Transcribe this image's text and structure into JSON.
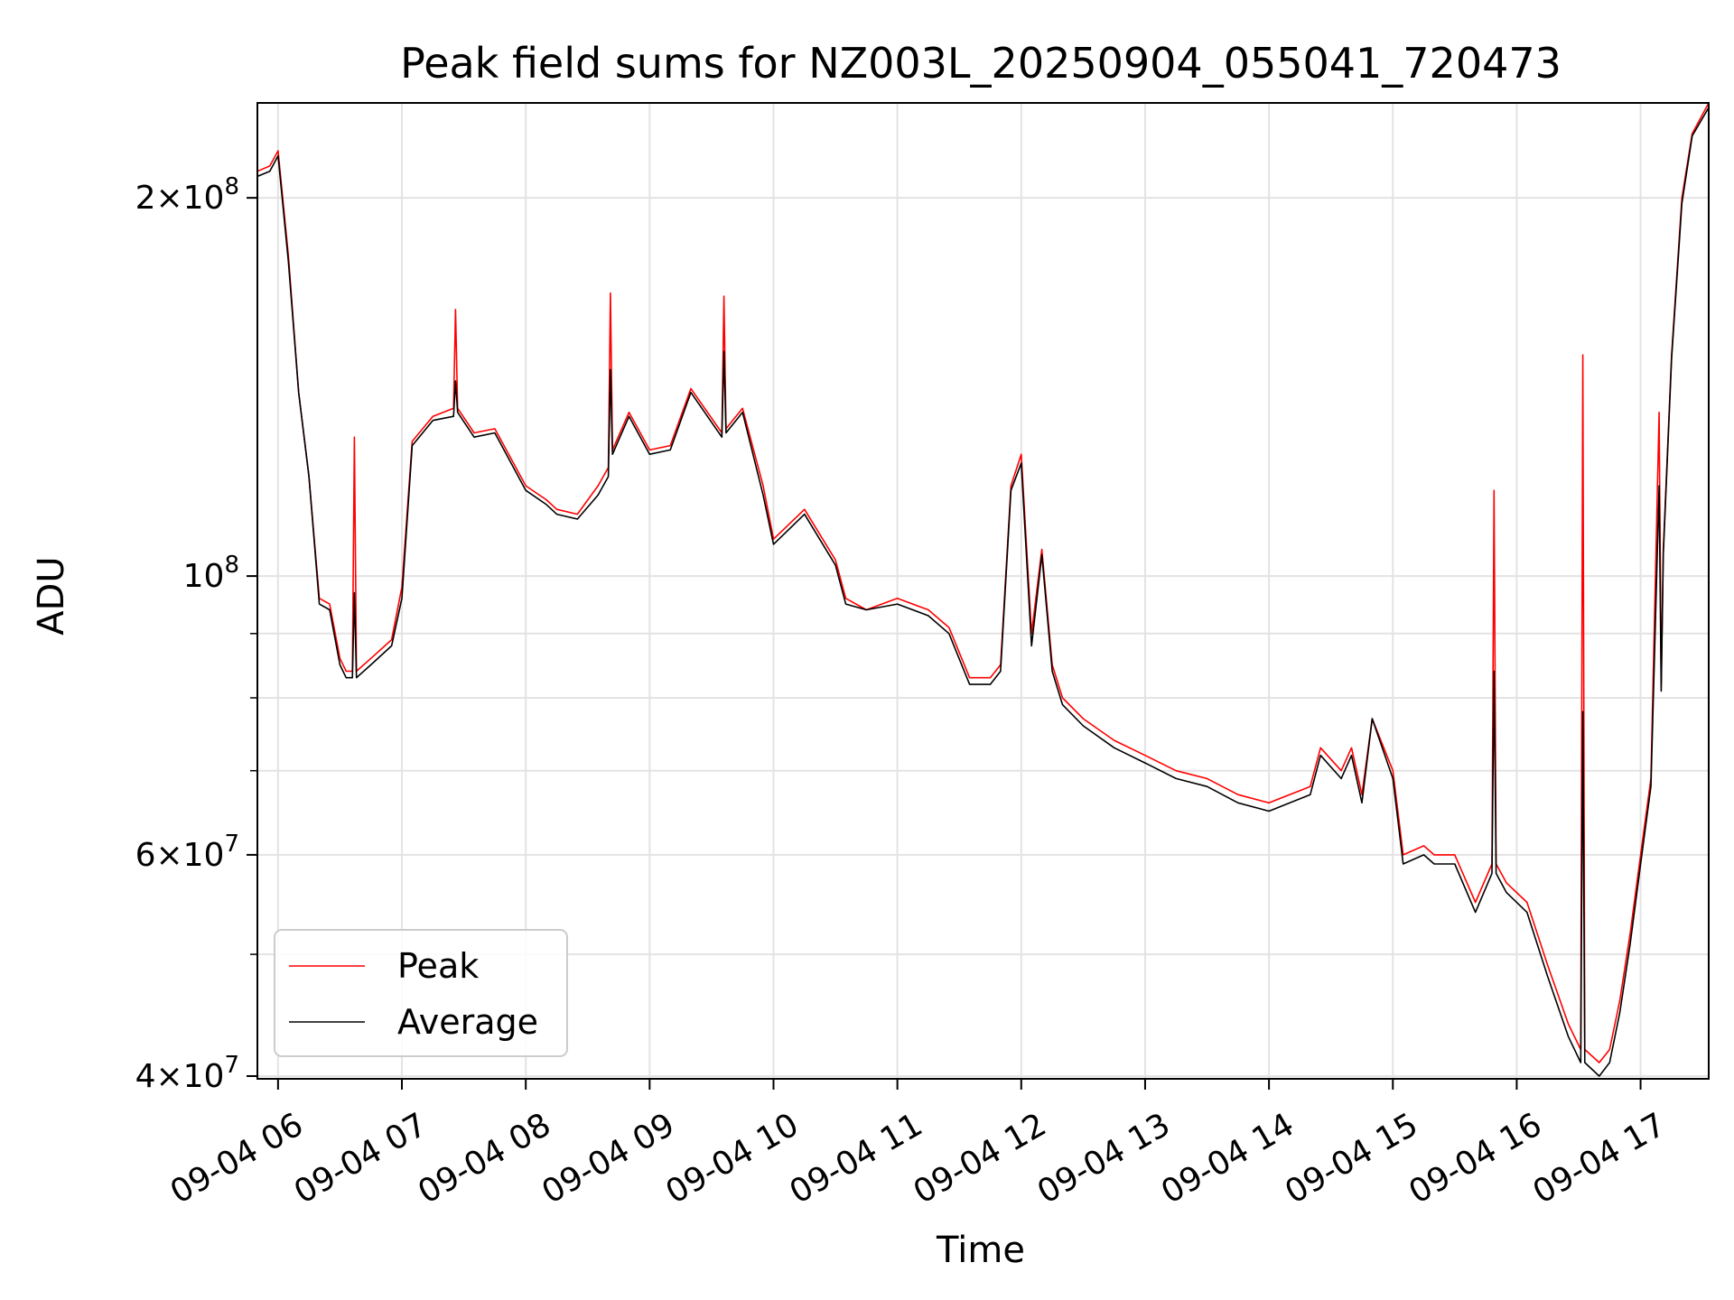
{
  "chart_data": {
    "type": "line",
    "title": "Peak field sums for NZ003L_20250904_055041_720473",
    "xlabel": "Time",
    "ylabel": "ADU",
    "x_axis_type": "datetime",
    "xlim": [
      "2025-09-04 05:50",
      "2025-09-04 17:33"
    ],
    "ylim": [
      39800000,
      238000000
    ],
    "yscale": "log",
    "grid": true,
    "legend_position": "lower-left",
    "x_ticks": [
      "09-04 06",
      "09-04 07",
      "09-04 08",
      "09-04 09",
      "09-04 10",
      "09-04 11",
      "09-04 12",
      "09-04 13",
      "09-04 14",
      "09-04 15",
      "09-04 16",
      "09-04 17"
    ],
    "y_ticks": [
      {
        "value": 40000000,
        "mantissa": "4",
        "exponent": "7"
      },
      {
        "value": 60000000,
        "mantissa": "6",
        "exponent": "7"
      },
      {
        "value": 100000000,
        "mantissa": "",
        "exponent": "8"
      },
      {
        "value": 200000000,
        "mantissa": "2",
        "exponent": "8"
      }
    ],
    "series": [
      {
        "name": "Peak",
        "color": "#ff0000",
        "x": [
          "2025-09-04 05:50",
          "2025-09-04 05:56",
          "2025-09-04 06:00",
          "2025-09-04 06:05",
          "2025-09-04 06:10",
          "2025-09-04 06:15",
          "2025-09-04 06:20",
          "2025-09-04 06:25",
          "2025-09-04 06:30",
          "2025-09-04 06:33",
          "2025-09-04 06:36",
          "2025-09-04 06:37",
          "2025-09-04 06:38",
          "2025-09-04 06:45",
          "2025-09-04 06:55",
          "2025-09-04 07:00",
          "2025-09-04 07:05",
          "2025-09-04 07:15",
          "2025-09-04 07:25",
          "2025-09-04 07:26",
          "2025-09-04 07:27",
          "2025-09-04 07:35",
          "2025-09-04 07:45",
          "2025-09-04 08:00",
          "2025-09-04 08:10",
          "2025-09-04 08:15",
          "2025-09-04 08:25",
          "2025-09-04 08:35",
          "2025-09-04 08:40",
          "2025-09-04 08:41",
          "2025-09-04 08:42",
          "2025-09-04 08:50",
          "2025-09-04 09:00",
          "2025-09-04 09:10",
          "2025-09-04 09:20",
          "2025-09-04 09:35",
          "2025-09-04 09:36",
          "2025-09-04 09:37",
          "2025-09-04 09:45",
          "2025-09-04 09:55",
          "2025-09-04 10:00",
          "2025-09-04 10:15",
          "2025-09-04 10:30",
          "2025-09-04 10:35",
          "2025-09-04 10:45",
          "2025-09-04 11:00",
          "2025-09-04 11:15",
          "2025-09-04 11:25",
          "2025-09-04 11:35",
          "2025-09-04 11:45",
          "2025-09-04 11:50",
          "2025-09-04 11:55",
          "2025-09-04 12:00",
          "2025-09-04 12:05",
          "2025-09-04 12:10",
          "2025-09-04 12:15",
          "2025-09-04 12:20",
          "2025-09-04 12:30",
          "2025-09-04 12:45",
          "2025-09-04 13:00",
          "2025-09-04 13:15",
          "2025-09-04 13:30",
          "2025-09-04 13:45",
          "2025-09-04 14:00",
          "2025-09-04 14:20",
          "2025-09-04 14:25",
          "2025-09-04 14:35",
          "2025-09-04 14:40",
          "2025-09-04 14:45",
          "2025-09-04 14:50",
          "2025-09-04 15:00",
          "2025-09-04 15:05",
          "2025-09-04 15:15",
          "2025-09-04 15:20",
          "2025-09-04 15:30",
          "2025-09-04 15:40",
          "2025-09-04 15:48",
          "2025-09-04 15:49",
          "2025-09-04 15:50",
          "2025-09-04 15:55",
          "2025-09-04 16:05",
          "2025-09-04 16:15",
          "2025-09-04 16:25",
          "2025-09-04 16:31",
          "2025-09-04 16:32",
          "2025-09-04 16:33",
          "2025-09-04 16:40",
          "2025-09-04 16:45",
          "2025-09-04 16:50",
          "2025-09-04 16:55",
          "2025-09-04 17:00",
          "2025-09-04 17:05",
          "2025-09-04 17:09",
          "2025-09-04 17:10",
          "2025-09-04 17:11",
          "2025-09-04 17:15",
          "2025-09-04 17:20",
          "2025-09-04 17:25",
          "2025-09-04 17:33"
        ],
        "values": [
          210000000,
          212000000,
          218000000,
          180000000,
          140000000,
          120000000,
          96000000,
          95000000,
          86000000,
          84000000,
          84000000,
          129000000,
          84000000,
          86000000,
          89000000,
          98000000,
          128000000,
          134000000,
          136000000,
          163000000,
          136000000,
          130000000,
          131000000,
          118000000,
          115000000,
          113000000,
          112000000,
          118000000,
          122000000,
          168000000,
          126000000,
          135000000,
          126000000,
          127000000,
          141000000,
          130000000,
          167000000,
          131000000,
          136000000,
          118000000,
          107000000,
          113000000,
          103000000,
          96000000,
          94000000,
          96000000,
          94000000,
          91000000,
          83000000,
          83000000,
          85000000,
          118000000,
          125000000,
          90000000,
          105000000,
          85000000,
          80000000,
          77000000,
          74000000,
          72000000,
          70000000,
          69000000,
          67000000,
          66000000,
          68000000,
          73000000,
          70000000,
          73000000,
          67000000,
          77000000,
          70000000,
          60000000,
          61000000,
          60000000,
          60000000,
          55000000,
          59000000,
          117000000,
          59000000,
          57000000,
          55000000,
          49000000,
          44000000,
          42000000,
          150000000,
          42000000,
          41000000,
          42000000,
          46000000,
          52000000,
          60000000,
          69000000,
          135000000,
          82000000,
          105000000,
          150000000,
          200000000,
          225000000,
          238000000
        ]
      },
      {
        "name": "Average",
        "color": "#000000",
        "x": [
          "2025-09-04 05:50",
          "2025-09-04 05:56",
          "2025-09-04 06:00",
          "2025-09-04 06:05",
          "2025-09-04 06:10",
          "2025-09-04 06:15",
          "2025-09-04 06:20",
          "2025-09-04 06:25",
          "2025-09-04 06:30",
          "2025-09-04 06:33",
          "2025-09-04 06:36",
          "2025-09-04 06:37",
          "2025-09-04 06:38",
          "2025-09-04 06:45",
          "2025-09-04 06:55",
          "2025-09-04 07:00",
          "2025-09-04 07:05",
          "2025-09-04 07:15",
          "2025-09-04 07:25",
          "2025-09-04 07:26",
          "2025-09-04 07:27",
          "2025-09-04 07:35",
          "2025-09-04 07:45",
          "2025-09-04 08:00",
          "2025-09-04 08:10",
          "2025-09-04 08:15",
          "2025-09-04 08:25",
          "2025-09-04 08:35",
          "2025-09-04 08:40",
          "2025-09-04 08:41",
          "2025-09-04 08:42",
          "2025-09-04 08:50",
          "2025-09-04 09:00",
          "2025-09-04 09:10",
          "2025-09-04 09:20",
          "2025-09-04 09:35",
          "2025-09-04 09:36",
          "2025-09-04 09:37",
          "2025-09-04 09:45",
          "2025-09-04 09:55",
          "2025-09-04 10:00",
          "2025-09-04 10:15",
          "2025-09-04 10:30",
          "2025-09-04 10:35",
          "2025-09-04 10:45",
          "2025-09-04 11:00",
          "2025-09-04 11:15",
          "2025-09-04 11:25",
          "2025-09-04 11:35",
          "2025-09-04 11:45",
          "2025-09-04 11:50",
          "2025-09-04 11:55",
          "2025-09-04 12:00",
          "2025-09-04 12:05",
          "2025-09-04 12:10",
          "2025-09-04 12:15",
          "2025-09-04 12:20",
          "2025-09-04 12:30",
          "2025-09-04 12:45",
          "2025-09-04 13:00",
          "2025-09-04 13:15",
          "2025-09-04 13:30",
          "2025-09-04 13:45",
          "2025-09-04 14:00",
          "2025-09-04 14:20",
          "2025-09-04 14:25",
          "2025-09-04 14:35",
          "2025-09-04 14:40",
          "2025-09-04 14:45",
          "2025-09-04 14:50",
          "2025-09-04 15:00",
          "2025-09-04 15:05",
          "2025-09-04 15:15",
          "2025-09-04 15:20",
          "2025-09-04 15:30",
          "2025-09-04 15:40",
          "2025-09-04 15:48",
          "2025-09-04 15:49",
          "2025-09-04 15:50",
          "2025-09-04 15:55",
          "2025-09-04 16:05",
          "2025-09-04 16:15",
          "2025-09-04 16:25",
          "2025-09-04 16:31",
          "2025-09-04 16:32",
          "2025-09-04 16:33",
          "2025-09-04 16:40",
          "2025-09-04 16:45",
          "2025-09-04 16:50",
          "2025-09-04 16:55",
          "2025-09-04 17:00",
          "2025-09-04 17:05",
          "2025-09-04 17:09",
          "2025-09-04 17:10",
          "2025-09-04 17:11",
          "2025-09-04 17:15",
          "2025-09-04 17:20",
          "2025-09-04 17:25",
          "2025-09-04 17:33"
        ],
        "values": [
          208000000,
          210000000,
          216000000,
          178000000,
          140000000,
          120000000,
          95000000,
          94000000,
          85000000,
          83000000,
          83000000,
          97000000,
          83000000,
          85000000,
          88000000,
          96000000,
          127000000,
          133000000,
          134000000,
          143000000,
          135000000,
          129000000,
          130000000,
          117000000,
          114000000,
          112000000,
          111000000,
          116000000,
          120000000,
          146000000,
          125000000,
          134000000,
          125000000,
          126000000,
          140000000,
          129000000,
          151000000,
          130000000,
          135000000,
          116000000,
          106000000,
          112000000,
          102000000,
          95000000,
          94000000,
          95000000,
          93000000,
          90000000,
          82000000,
          82000000,
          84000000,
          117000000,
          123000000,
          88000000,
          104000000,
          84000000,
          79000000,
          76000000,
          73000000,
          71000000,
          69000000,
          68000000,
          66000000,
          65000000,
          67000000,
          72000000,
          69000000,
          72000000,
          66000000,
          77000000,
          69000000,
          59000000,
          60000000,
          59000000,
          59000000,
          54000000,
          58000000,
          84000000,
          58000000,
          56000000,
          54000000,
          48000000,
          43000000,
          41000000,
          78000000,
          41000000,
          40000000,
          41000000,
          45000000,
          51000000,
          59000000,
          68000000,
          118000000,
          81000000,
          104000000,
          149000000,
          198000000,
          224000000,
          236000000
        ]
      }
    ]
  }
}
